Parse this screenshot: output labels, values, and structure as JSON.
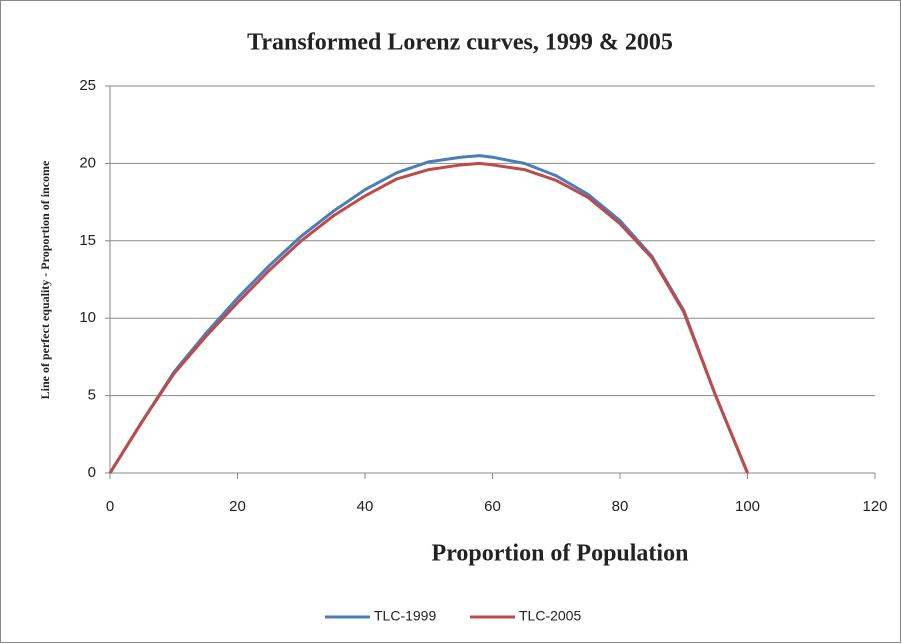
{
  "chart_data": {
    "type": "line",
    "title": "Transformed Lorenz curves, 1999 & 2005",
    "xlabel": "Proportion of Population",
    "ylabel": "Line of perfect equality - Proportion of income",
    "x": [
      0,
      5,
      10,
      15,
      20,
      25,
      30,
      35,
      40,
      45,
      50,
      55,
      58,
      60,
      65,
      70,
      75,
      80,
      85,
      90,
      95,
      100
    ],
    "series": [
      {
        "name": "TLC-1999",
        "color": "#4a7ebb",
        "values": [
          0,
          3.3,
          6.5,
          9.0,
          11.3,
          13.4,
          15.3,
          16.9,
          18.3,
          19.4,
          20.1,
          20.4,
          20.5,
          20.4,
          20.0,
          19.2,
          18.0,
          16.3,
          14.0,
          10.5,
          5.0,
          0
        ]
      },
      {
        "name": "TLC-2005",
        "color": "#be4b48",
        "values": [
          0,
          3.3,
          6.4,
          8.8,
          11.0,
          13.1,
          15.0,
          16.6,
          17.9,
          19.0,
          19.6,
          19.9,
          20.0,
          19.9,
          19.6,
          18.9,
          17.8,
          16.1,
          13.9,
          10.4,
          5.0,
          0
        ]
      }
    ],
    "xlim": [
      0,
      120
    ],
    "xticks": [
      0,
      20,
      40,
      60,
      80,
      100,
      120
    ],
    "ylim": [
      0,
      25
    ],
    "yticks": [
      0,
      5,
      10,
      15,
      20,
      25
    ],
    "grid": true,
    "legend": "bottom"
  }
}
